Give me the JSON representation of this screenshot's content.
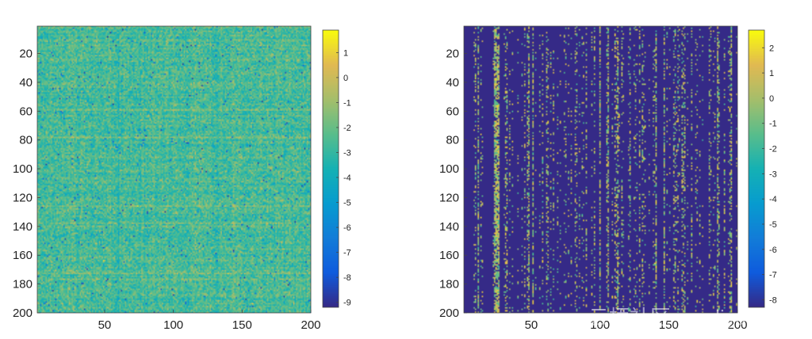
{
  "chart_data": [
    {
      "type": "heatmap",
      "name": "left",
      "rows": 200,
      "cols": 200,
      "xlim": [
        1,
        200
      ],
      "ylim": [
        1,
        200
      ],
      "xticks": [
        50,
        100,
        150,
        200
      ],
      "yticks": [
        20,
        40,
        60,
        80,
        100,
        120,
        140,
        160,
        180,
        200
      ],
      "colorbar": {
        "min": -9.2,
        "max": 1.9,
        "ticks": [
          1,
          0,
          -1,
          -2,
          -3,
          -4,
          -5,
          -6,
          -7,
          -8,
          -9
        ]
      },
      "grid": false
    },
    {
      "type": "heatmap",
      "name": "right",
      "rows": 200,
      "cols": 200,
      "xlim": [
        1,
        200
      ],
      "ylim": [
        1,
        200
      ],
      "xticks": [
        50,
        100,
        150,
        200
      ],
      "yticks": [
        20,
        40,
        60,
        80,
        100,
        120,
        140,
        160,
        180,
        200
      ],
      "colorbar": {
        "min": -8.3,
        "max": 2.7,
        "ticks": [
          2,
          1,
          0,
          -1,
          -2,
          -3,
          -4,
          -5,
          -6,
          -7,
          -8
        ]
      },
      "grid": false
    }
  ],
  "colors": {
    "parula_low": "#352a87",
    "parula_high": "#f9fb0e"
  },
  "watermark": "云栖社区 yq.aliyun.com"
}
